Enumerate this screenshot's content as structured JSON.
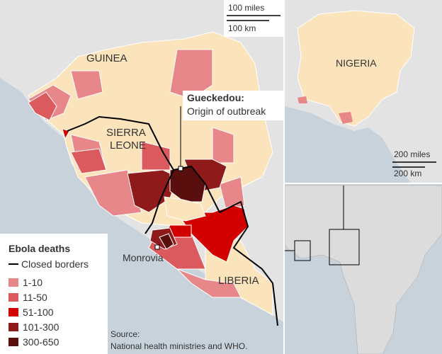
{
  "scale_main": {
    "miles": "100 miles",
    "km": "100 km"
  },
  "labels": {
    "guinea": "GUINEA",
    "sierra_leone": [
      "SIERRA",
      "LEONE"
    ],
    "liberia": "LIBERIA",
    "monrovia": "Monrovia",
    "nigeria": "NIGERIA"
  },
  "callout": {
    "title": "Gueckedou:",
    "text": "Origin of outbreak"
  },
  "scale_inset": {
    "miles": "200 miles",
    "km": "200 km"
  },
  "legend": {
    "title": "Ebola deaths",
    "border": "Closed borders",
    "items": [
      {
        "label": "1-10",
        "color": "#e8878a"
      },
      {
        "label": "11-50",
        "color": "#db5a5d"
      },
      {
        "label": "51-100",
        "color": "#d30000"
      },
      {
        "label": "101-300",
        "color": "#8e1a1a"
      },
      {
        "label": "300-650",
        "color": "#5a0f0f"
      }
    ]
  },
  "source": [
    "Source:",
    "National health ministries and WHO."
  ]
}
